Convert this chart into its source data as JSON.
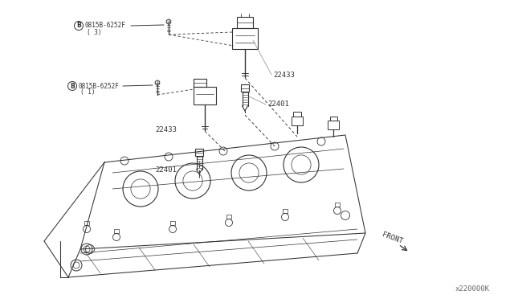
{
  "bg_color": "#ffffff",
  "line_color": "#333333",
  "label_color": "#222222",
  "light_color": "#888888",
  "part_b1_number": "0815B-6252F",
  "part_b1_sub": "( 3)",
  "part_b2_number": "0815B-6252F",
  "part_b2_sub": "( 1)",
  "label_22433": "22433",
  "label_22401": "22401",
  "front_label": "FRONT",
  "catalog": "x220000K",
  "fig_width": 6.4,
  "fig_height": 3.72,
  "dpi": 100
}
